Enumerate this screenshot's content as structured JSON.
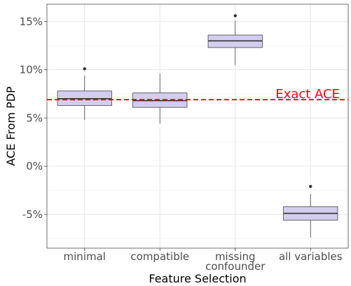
{
  "chart_data": {
    "type": "box",
    "title": "",
    "xlabel": "Feature Selection",
    "ylabel": "ACE From PDP",
    "ylim": [
      -8.5,
      16.8
    ],
    "y_ticks": [
      {
        "value": 15,
        "label": "15%"
      },
      {
        "value": 10,
        "label": "10%"
      },
      {
        "value": 5,
        "label": "5%"
      },
      {
        "value": 0,
        "label": "0%"
      },
      {
        "value": -5,
        "label": "-5%"
      }
    ],
    "categories": [
      {
        "lines": [
          "minimal"
        ]
      },
      {
        "lines": [
          "compatible"
        ]
      },
      {
        "lines": [
          "missing",
          "confounder"
        ]
      },
      {
        "lines": [
          "all variables"
        ]
      }
    ],
    "boxes": [
      {
        "whisker_low": 4.8,
        "q1": 6.3,
        "median": 7.0,
        "q3": 7.8,
        "whisker_high": 9.4,
        "outliers": [
          10.1
        ]
      },
      {
        "whisker_low": 4.4,
        "q1": 6.1,
        "median": 6.8,
        "q3": 7.6,
        "whisker_high": 9.6,
        "outliers": []
      },
      {
        "whisker_low": 10.5,
        "q1": 12.3,
        "median": 13.0,
        "q3": 13.6,
        "whisker_high": 15.1,
        "outliers": [
          15.6
        ]
      },
      {
        "whisker_low": -7.4,
        "q1": -5.6,
        "median": -4.9,
        "q3": -4.2,
        "whisker_high": -2.9,
        "outliers": [
          -2.1
        ]
      }
    ],
    "reference_line": {
      "value": 6.9,
      "label": "Exact ACE",
      "color": "#ff0000",
      "style": "dashed"
    },
    "box_fill": "#d3cdf0",
    "box_stroke": "#444444",
    "grid": true
  }
}
